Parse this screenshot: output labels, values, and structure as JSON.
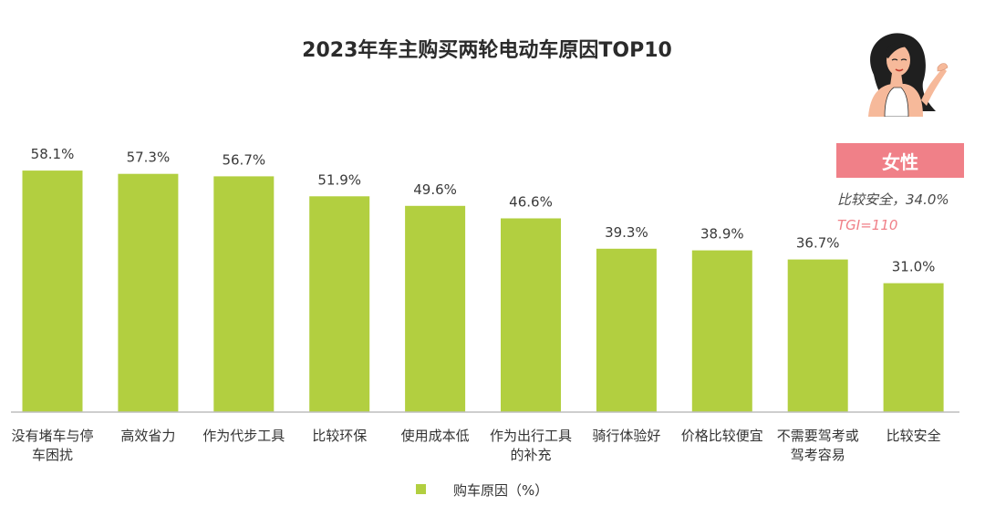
{
  "chart_data": {
    "type": "bar",
    "title": "2023年车主购买两轮电动车原因TOP10",
    "categories": [
      [
        "没有堵车与停",
        "车困扰"
      ],
      [
        "高效省力"
      ],
      [
        "作为代步工具"
      ],
      [
        "比较环保"
      ],
      [
        "使用成本低"
      ],
      [
        "作为出行工具",
        "的补充"
      ],
      [
        "骑行体验好"
      ],
      [
        "价格比较便宜"
      ],
      [
        "不需要驾考或",
        "驾考容易"
      ],
      [
        "比较安全"
      ]
    ],
    "series": [
      {
        "name": "购车原因（%）",
        "values": [
          58.1,
          57.3,
          56.7,
          51.9,
          49.6,
          46.6,
          39.3,
          38.9,
          36.7,
          31.0
        ]
      }
    ],
    "value_labels": [
      "58.1%",
      "57.3%",
      "56.7%",
      "51.9%",
      "49.6%",
      "46.6%",
      "39.3%",
      "38.9%",
      "36.7%",
      "31.0%"
    ],
    "ylim": [
      0,
      70
    ],
    "grid": false,
    "legend_position": "bottom",
    "colors": {
      "bar": "#b2cf40",
      "axis": "#bdbdbd"
    }
  },
  "callout": {
    "badge": "女性",
    "stat": "比较安全，34.0%",
    "tgi": "TGI=110",
    "icon": "woman-illustration-icon",
    "colors": {
      "badge": "#f08088",
      "tgi": "#f08088"
    }
  }
}
